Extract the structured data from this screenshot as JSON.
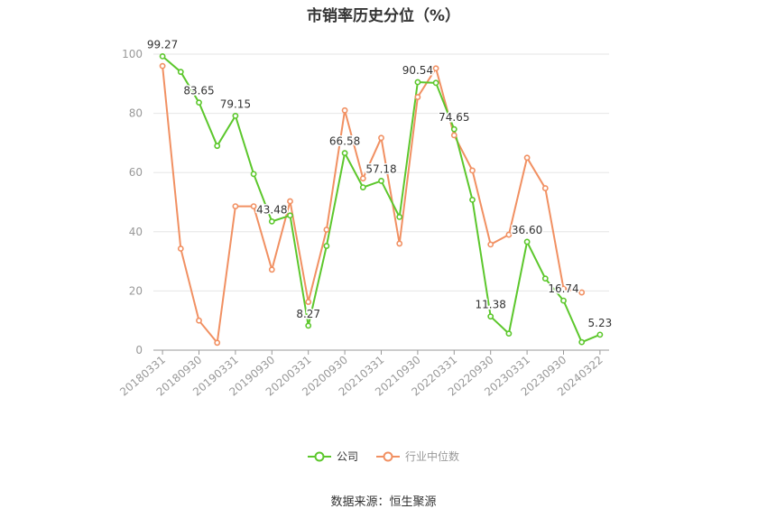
{
  "chart_data": {
    "type": "line",
    "title": "市销率历史分位（%）",
    "ylim": [
      0,
      100
    ],
    "yticks": [
      0,
      20,
      40,
      60,
      80,
      100
    ],
    "xtick_labels": [
      "20180331",
      "20180930",
      "20190331",
      "20190930",
      "20200331",
      "20200930",
      "20210331",
      "20210930",
      "20220331",
      "20220930",
      "20230331",
      "20230930",
      "20240322"
    ],
    "x": [
      "20180331",
      "20180630",
      "20180930",
      "20181231",
      "20190331",
      "20190630",
      "20190930",
      "20191231",
      "20200331",
      "20200630",
      "20200930",
      "20201231",
      "20210331",
      "20210630",
      "20210930",
      "20211231",
      "20220331",
      "20220630",
      "20220930",
      "20221231",
      "20230331",
      "20230630",
      "20230930",
      "20231231",
      "20240322"
    ],
    "series": [
      {
        "name": "公司",
        "color": "#5cc72c",
        "values": [
          99.27,
          94.0,
          83.65,
          69.0,
          79.15,
          59.5,
          43.48,
          45.5,
          8.27,
          35.2,
          66.58,
          55.0,
          57.18,
          45.0,
          90.54,
          90.3,
          74.65,
          50.8,
          11.38,
          5.6,
          36.6,
          24.2,
          16.74,
          2.7,
          5.23
        ]
      },
      {
        "name": "行业中位数",
        "color": "#f19062",
        "values": [
          96.0,
          34.3,
          10.0,
          2.5,
          48.6,
          48.6,
          27.2,
          50.3,
          16.3,
          40.7,
          81.0,
          58.0,
          71.7,
          36.0,
          85.5,
          95.2,
          72.6,
          60.7,
          35.7,
          39.0,
          65.0,
          54.7,
          20.8,
          19.5,
          null
        ]
      }
    ],
    "data_labels": [
      {
        "series": 0,
        "index": 0,
        "text": "99.27"
      },
      {
        "series": 0,
        "index": 2,
        "text": "83.65"
      },
      {
        "series": 0,
        "index": 4,
        "text": "79.15"
      },
      {
        "series": 0,
        "index": 6,
        "text": "43.48"
      },
      {
        "series": 0,
        "index": 8,
        "text": "8.27"
      },
      {
        "series": 0,
        "index": 10,
        "text": "66.58"
      },
      {
        "series": 0,
        "index": 12,
        "text": "57.18"
      },
      {
        "series": 0,
        "index": 14,
        "text": "90.54"
      },
      {
        "series": 0,
        "index": 16,
        "text": "74.65"
      },
      {
        "series": 0,
        "index": 18,
        "text": "11.38"
      },
      {
        "series": 0,
        "index": 20,
        "text": "36.60"
      },
      {
        "series": 0,
        "index": 22,
        "text": "16.74"
      },
      {
        "series": 0,
        "index": 24,
        "text": "5.23"
      }
    ],
    "grid": true,
    "legend_position": "bottom"
  },
  "source_text": "数据来源：恒生聚源"
}
